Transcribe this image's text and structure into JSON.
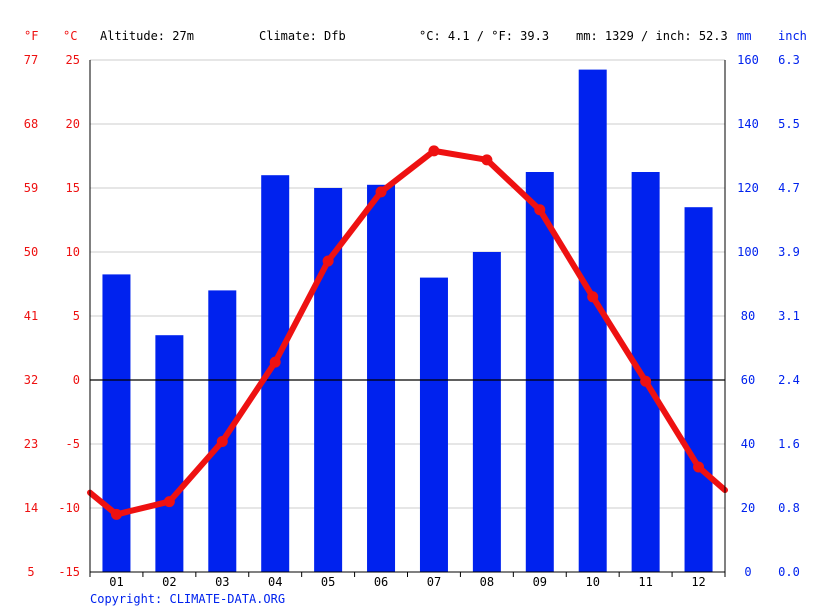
{
  "header": {
    "unit_f": "°F",
    "unit_c": "°C",
    "altitude": "Altitude: 27m",
    "climate": "Climate: Dfb",
    "temp_avg": "°C: 4.1 / °F: 39.3",
    "precip_total": "mm: 1329 / inch: 52.3",
    "unit_mm": "mm",
    "unit_inch": "inch"
  },
  "copyright": "Copyright: CLIMATE-DATA.ORG",
  "colors": {
    "temperature": "#ee1111",
    "precipitation": "#0022ee",
    "zero_line": "#000000",
    "grid": "#cccccc"
  },
  "chart_data": {
    "type": "bar",
    "title": "",
    "categories": [
      "01",
      "02",
      "03",
      "04",
      "05",
      "06",
      "07",
      "08",
      "09",
      "10",
      "11",
      "12"
    ],
    "series": [
      {
        "axis": "right_mm",
        "kind": "bar",
        "values": [
          93,
          74,
          88,
          124,
          120,
          121,
          92,
          100,
          125,
          157,
          125,
          114
        ]
      },
      {
        "axis": "left_c",
        "kind": "line",
        "values": [
          -10.5,
          -9.5,
          -4.8,
          1.4,
          9.3,
          14.7,
          17.9,
          17.2,
          13.3,
          6.5,
          -0.1,
          -6.8
        ]
      }
    ],
    "line_start_value": -8.8,
    "line_end_value": -8.6,
    "axes": {
      "left_c": {
        "ylim": [
          -15,
          25
        ],
        "ticks": [
          "-15",
          "-10",
          "-5",
          "0",
          "5",
          "10",
          "15",
          "20",
          "25"
        ]
      },
      "left_f": {
        "ticks": [
          "5",
          "14",
          "23",
          "32",
          "41",
          "50",
          "59",
          "68",
          "77"
        ]
      },
      "right_mm": {
        "ylim": [
          0,
          160
        ],
        "ticks": [
          "0",
          "20",
          "40",
          "60",
          "80",
          "100",
          "120",
          "140",
          "160"
        ]
      },
      "right_inch": {
        "ticks": [
          "0.0",
          "0.8",
          "1.6",
          "2.4",
          "3.1",
          "3.9",
          "4.7",
          "5.5",
          "6.3"
        ]
      }
    },
    "grid": true
  }
}
